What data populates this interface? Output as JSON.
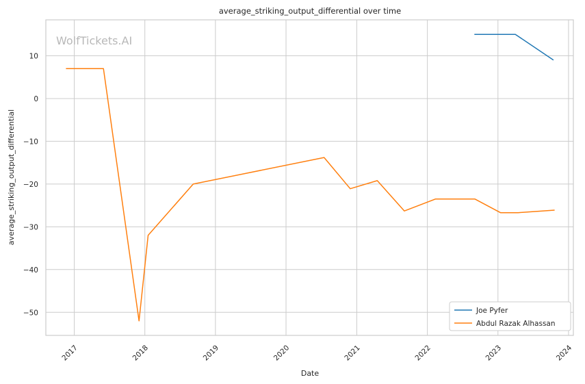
{
  "watermark": "WolfTickets.AI",
  "chart_data": {
    "type": "line",
    "title": "average_striking_output_differential over time",
    "xlabel": "Date",
    "ylabel": "average_striking_output_differential",
    "x_type": "date",
    "xlim": [
      "2016-08-07",
      "2024-01-26"
    ],
    "ylim": [
      -55.4,
      18.4
    ],
    "x_ticks": [
      "2017",
      "2018",
      "2019",
      "2020",
      "2021",
      "2022",
      "2023",
      "2024"
    ],
    "y_ticks": [
      10,
      0,
      -10,
      -20,
      -30,
      -40,
      -50
    ],
    "y_tick_labels": [
      "10",
      "0",
      "−10",
      "−20",
      "−30",
      "−40",
      "−50"
    ],
    "grid": true,
    "legend_position": "bottom-right",
    "series": [
      {
        "name": "Joe Pyfer",
        "color": "#1f77b4",
        "points": [
          {
            "x": "2022-09-01",
            "y": 15
          },
          {
            "x": "2023-04-01",
            "y": 15
          },
          {
            "x": "2023-10-15",
            "y": 9
          }
        ]
      },
      {
        "name": "Abdul Razak Alhassan",
        "color": "#ff7f0e",
        "points": [
          {
            "x": "2016-11-19",
            "y": 7
          },
          {
            "x": "2017-06-01",
            "y": 7
          },
          {
            "x": "2017-12-02",
            "y": -52
          },
          {
            "x": "2018-01-18",
            "y": -32
          },
          {
            "x": "2018-09-08",
            "y": -20
          },
          {
            "x": "2020-07-16",
            "y": -13.8
          },
          {
            "x": "2020-11-28",
            "y": -21.1
          },
          {
            "x": "2021-04-17",
            "y": -19.2
          },
          {
            "x": "2021-09-04",
            "y": -26.3
          },
          {
            "x": "2022-02-12",
            "y": -23.5
          },
          {
            "x": "2022-09-03",
            "y": -23.5
          },
          {
            "x": "2023-01-14",
            "y": -26.7
          },
          {
            "x": "2023-04-15",
            "y": -26.7
          },
          {
            "x": "2023-10-21",
            "y": -26.1
          }
        ]
      }
    ]
  }
}
